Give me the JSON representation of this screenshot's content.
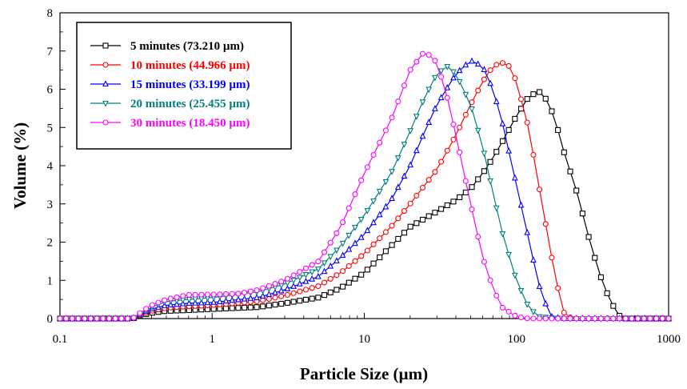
{
  "chart_data": {
    "type": "line",
    "xlabel": "Particle Size (µm)",
    "ylabel": "Volume (%)",
    "xscale": "log",
    "xlim": [
      0.1,
      1000
    ],
    "ylim": [
      0,
      8
    ],
    "xticks": [
      0.1,
      1,
      10,
      100,
      1000
    ],
    "xtick_labels": [
      "0.1",
      "1",
      "10",
      "100",
      "1000"
    ],
    "yticks": [
      0,
      1,
      2,
      3,
      4,
      5,
      6,
      7,
      8
    ],
    "ytick_labels": [
      "0",
      "1",
      "2",
      "3",
      "4",
      "5",
      "6",
      "7",
      "8"
    ],
    "grid": false,
    "legend_position": "top-left",
    "series": [
      {
        "name": "5 minutes (73.210 µm)",
        "color": "#000000",
        "marker": "square",
        "x": [
          0.1,
          0.15,
          0.2,
          0.3,
          0.35,
          0.4,
          0.5,
          0.7,
          1,
          2,
          3,
          5,
          7,
          10,
          15,
          20,
          30,
          40,
          50,
          60,
          70,
          80,
          100,
          120,
          140,
          160,
          180,
          200,
          250,
          300,
          350,
          400,
          450,
          480,
          500,
          600,
          700,
          1000
        ],
        "y": [
          0,
          0,
          0,
          0,
          0.1,
          0.15,
          0.2,
          0.22,
          0.25,
          0.3,
          0.4,
          0.55,
          0.8,
          1.2,
          1.9,
          2.4,
          2.8,
          3.1,
          3.4,
          3.8,
          4.2,
          4.6,
          5.3,
          5.8,
          5.95,
          5.7,
          5.2,
          4.5,
          3.3,
          2.1,
          1.2,
          0.6,
          0.2,
          0.05,
          0,
          0,
          0,
          0
        ]
      },
      {
        "name": "10 minutes (44.966 µm)",
        "color": "#ff0000",
        "marker": "circle",
        "x": [
          0.1,
          0.2,
          0.3,
          0.35,
          0.4,
          0.5,
          0.7,
          1,
          2,
          3,
          5,
          7,
          10,
          15,
          20,
          30,
          40,
          50,
          60,
          70,
          80,
          90,
          100,
          120,
          140,
          160,
          180,
          200,
          210,
          250,
          300,
          500,
          1000
        ],
        "y": [
          0,
          0,
          0,
          0.12,
          0.2,
          0.28,
          0.32,
          0.35,
          0.45,
          0.6,
          0.85,
          1.2,
          1.7,
          2.4,
          3.0,
          3.9,
          4.8,
          5.6,
          6.2,
          6.6,
          6.7,
          6.6,
          6.2,
          5.0,
          3.5,
          2.2,
          1.1,
          0.3,
          0.05,
          0,
          0,
          0,
          0
        ]
      },
      {
        "name": "15 minutes (33.199 µm)",
        "color": "#0000ff",
        "marker": "triangle-up",
        "x": [
          0.1,
          0.2,
          0.3,
          0.35,
          0.4,
          0.5,
          0.7,
          1,
          2,
          3,
          5,
          7,
          10,
          15,
          20,
          25,
          30,
          40,
          50,
          60,
          70,
          80,
          100,
          120,
          140,
          160,
          170,
          200,
          300,
          500,
          1000
        ],
        "y": [
          0,
          0,
          0,
          0.15,
          0.25,
          0.35,
          0.4,
          0.42,
          0.55,
          0.75,
          1.1,
          1.6,
          2.2,
          3.1,
          4.0,
          4.9,
          5.6,
          6.4,
          6.75,
          6.6,
          6.0,
          5.2,
          3.5,
          2.1,
          0.9,
          0.25,
          0.05,
          0,
          0,
          0,
          0
        ]
      },
      {
        "name": "20 minutes (25.455 µm)",
        "color": "#008080",
        "marker": "triangle-down",
        "x": [
          0.1,
          0.2,
          0.3,
          0.35,
          0.4,
          0.5,
          0.7,
          1,
          2,
          3,
          5,
          7,
          10,
          15,
          20,
          25,
          30,
          35,
          40,
          50,
          60,
          70,
          80,
          100,
          120,
          140,
          200,
          300,
          500,
          1000
        ],
        "y": [
          0,
          0,
          0,
          0.15,
          0.3,
          0.45,
          0.5,
          0.55,
          0.7,
          0.9,
          1.3,
          1.9,
          2.7,
          3.8,
          4.9,
          5.8,
          6.4,
          6.6,
          6.4,
          5.6,
          4.5,
          3.3,
          2.3,
          1.0,
          0.3,
          0.05,
          0,
          0,
          0,
          0
        ]
      },
      {
        "name": "30 minutes (18.450 µm)",
        "color": "#ff00ff",
        "marker": "circle",
        "x": [
          0.1,
          0.2,
          0.3,
          0.35,
          0.4,
          0.5,
          0.7,
          1,
          1.5,
          2,
          3,
          5,
          7,
          10,
          15,
          20,
          25,
          30,
          35,
          40,
          50,
          60,
          70,
          80,
          100,
          120,
          200,
          300,
          500,
          1000
        ],
        "y": [
          0,
          0,
          0,
          0.2,
          0.35,
          0.5,
          0.62,
          0.63,
          0.65,
          0.75,
          1.0,
          1.5,
          2.4,
          3.8,
          5.2,
          6.5,
          7.0,
          6.7,
          5.8,
          4.8,
          3.0,
          1.6,
          0.8,
          0.3,
          0.05,
          0,
          0,
          0,
          0,
          0
        ]
      }
    ]
  }
}
